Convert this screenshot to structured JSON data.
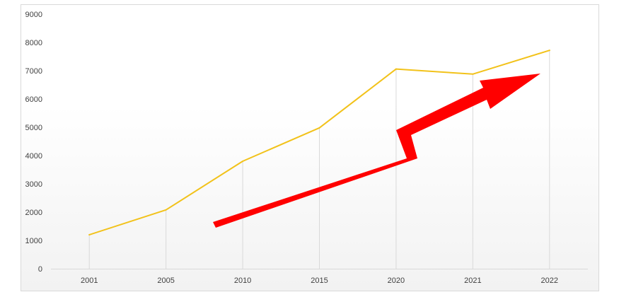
{
  "chart_data": {
    "type": "line",
    "categories": [
      "2001",
      "2005",
      "2010",
      "2015",
      "2020",
      "2021",
      "2022"
    ],
    "series": [
      {
        "values": [
          1200,
          2080,
          3800,
          4980,
          7060,
          6880,
          7720
        ],
        "color": "#f2c21a"
      }
    ],
    "ylim": [
      0,
      9000
    ],
    "yticks": [
      "0",
      "1000",
      "2000",
      "3000",
      "4000",
      "5000",
      "6000",
      "7000",
      "8000",
      "9000"
    ],
    "grid": "vertical lines at categories",
    "legend": "none",
    "annotation": {
      "type": "zigzag-arrow",
      "color": "#ff0000",
      "direction": "up-right"
    },
    "colors": {
      "line": "#f2c21a",
      "arrow": "#ff0000",
      "axis": "#d9d9d9",
      "grid": "#d9d9d9"
    }
  }
}
